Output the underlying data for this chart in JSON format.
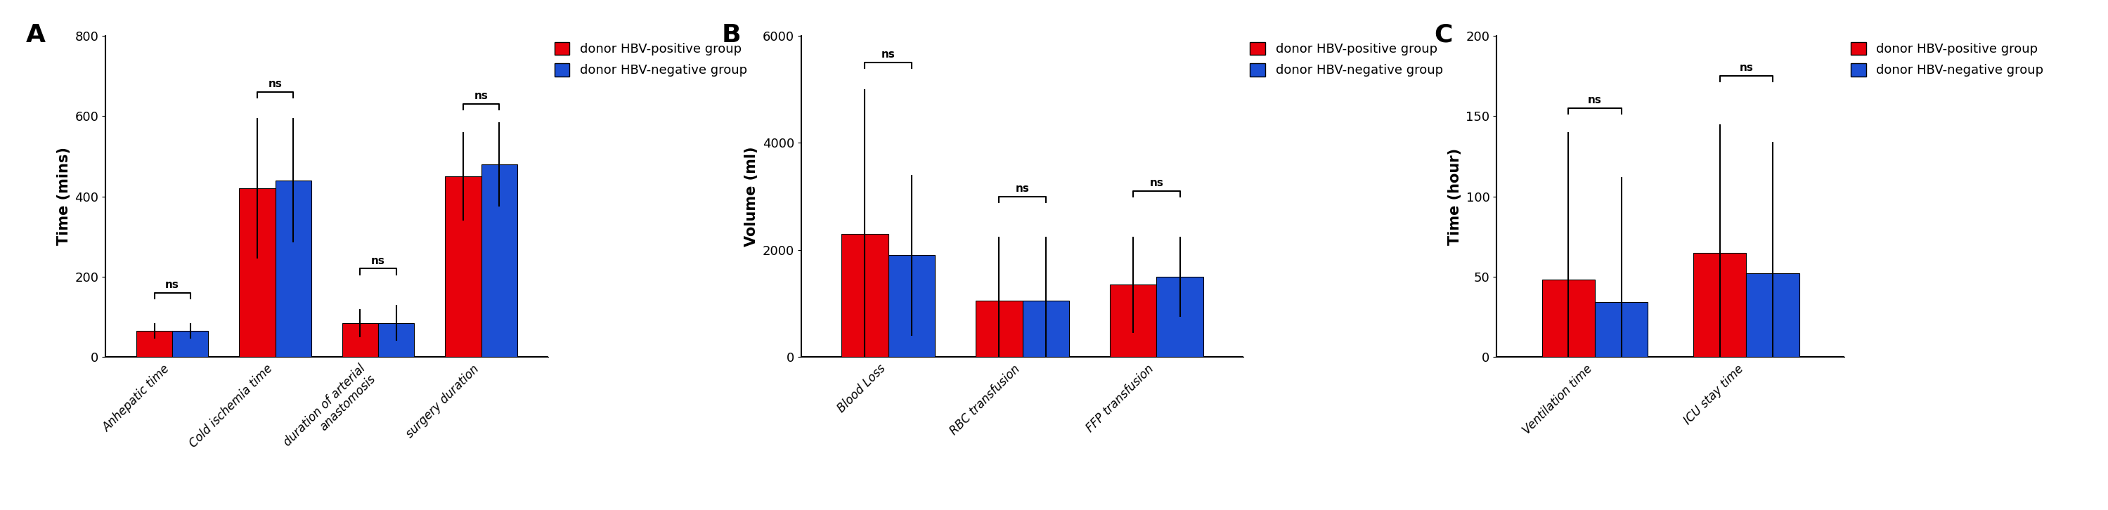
{
  "panel_A": {
    "label": "A",
    "categories": [
      "Anhepatic time",
      "Cold ischemia time",
      "duration of arterial\nanastomosis",
      "surgery duration"
    ],
    "red_values": [
      65,
      420,
      85,
      450
    ],
    "blue_values": [
      65,
      440,
      85,
      480
    ],
    "red_errors": [
      20,
      175,
      35,
      110
    ],
    "blue_errors": [
      20,
      155,
      45,
      105
    ],
    "ylabel": "Time (mins)",
    "ylim": [
      0,
      800
    ],
    "yticks": [
      0,
      200,
      400,
      600,
      800
    ],
    "sig_brackets": [
      {
        "cat": 0,
        "y": 160,
        "label": "ns"
      },
      {
        "cat": 1,
        "y": 660,
        "label": "ns"
      },
      {
        "cat": 2,
        "y": 220,
        "label": "ns"
      },
      {
        "cat": 3,
        "y": 630,
        "label": "ns"
      }
    ]
  },
  "panel_B": {
    "label": "B",
    "categories": [
      "Blood Loss",
      "RBC transfusion",
      "FFP transfusion"
    ],
    "red_values": [
      2300,
      1050,
      1350
    ],
    "blue_values": [
      1900,
      1050,
      1500
    ],
    "red_errors": [
      2700,
      1200,
      900
    ],
    "blue_errors": [
      1500,
      1200,
      750
    ],
    "ylabel": "Volume (ml)",
    "ylim": [
      0,
      6000
    ],
    "yticks": [
      0,
      2000,
      4000,
      6000
    ],
    "sig_brackets": [
      {
        "cat": 0,
        "y": 5500,
        "label": "ns"
      },
      {
        "cat": 1,
        "y": 3000,
        "label": "ns"
      },
      {
        "cat": 2,
        "y": 3100,
        "label": "ns"
      }
    ]
  },
  "panel_C": {
    "label": "C",
    "categories": [
      "Ventilation time",
      "ICU stay time"
    ],
    "red_values": [
      48,
      65
    ],
    "blue_values": [
      34,
      52
    ],
    "red_errors": [
      92,
      80
    ],
    "blue_errors": [
      78,
      82
    ],
    "ylabel": "Time (hour)",
    "ylim": [
      0,
      200
    ],
    "yticks": [
      0,
      50,
      100,
      150,
      200
    ],
    "sig_brackets": [
      {
        "cat": 0,
        "y": 155,
        "label": "ns"
      },
      {
        "cat": 1,
        "y": 175,
        "label": "ns"
      }
    ]
  },
  "red_color": "#E8000B",
  "blue_color": "#1C4FD4",
  "bar_width": 0.35,
  "legend_labels": [
    "donor HBV-positive group",
    "donor HBV-negative group"
  ],
  "background_color": "#FFFFFF",
  "panel_label_fontsize": 26,
  "tick_fontsize": 13,
  "ylabel_fontsize": 15,
  "legend_fontsize": 13,
  "category_fontsize": 12
}
